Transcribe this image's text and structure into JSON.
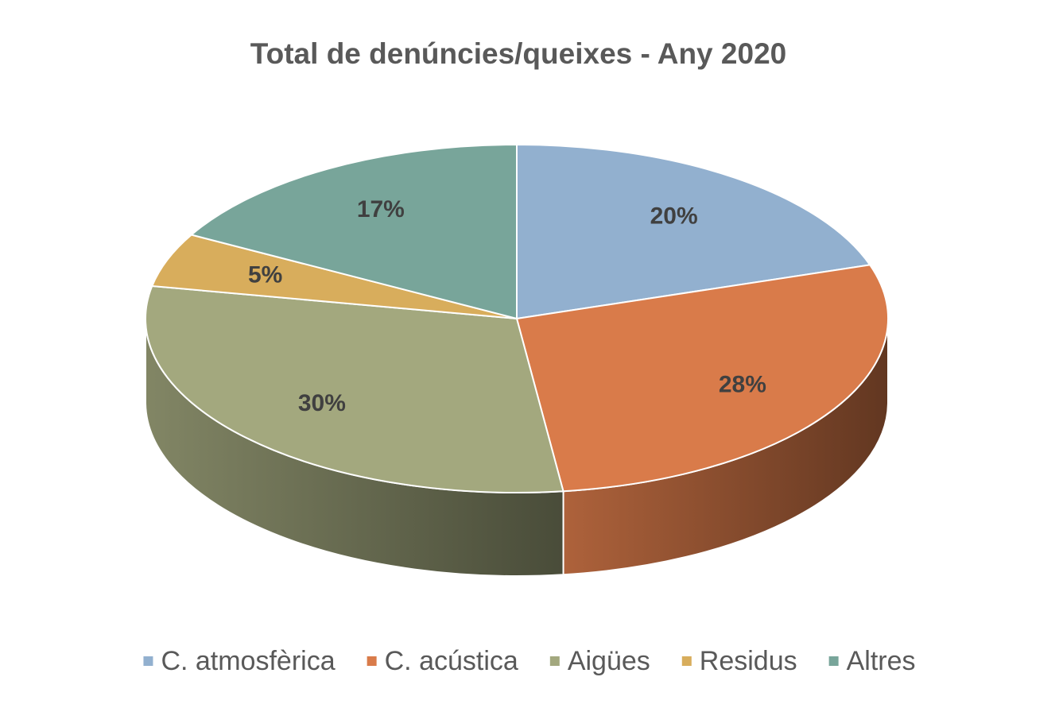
{
  "chart_data": {
    "type": "pie3d",
    "title": "Total de denúncies/queixes - Any 2020",
    "categories": [
      "C. atmosfèrica",
      "C. acústica",
      "Aigües",
      "Residus",
      "Altres"
    ],
    "values": [
      20,
      28,
      30,
      5,
      17
    ],
    "value_labels": [
      "20%",
      "28%",
      "30%",
      "5%",
      "17%"
    ],
    "colors": [
      "#92b0cf",
      "#d97b4a",
      "#a3a87e",
      "#d8ad5c",
      "#78a59a"
    ],
    "legend": "bottom"
  }
}
